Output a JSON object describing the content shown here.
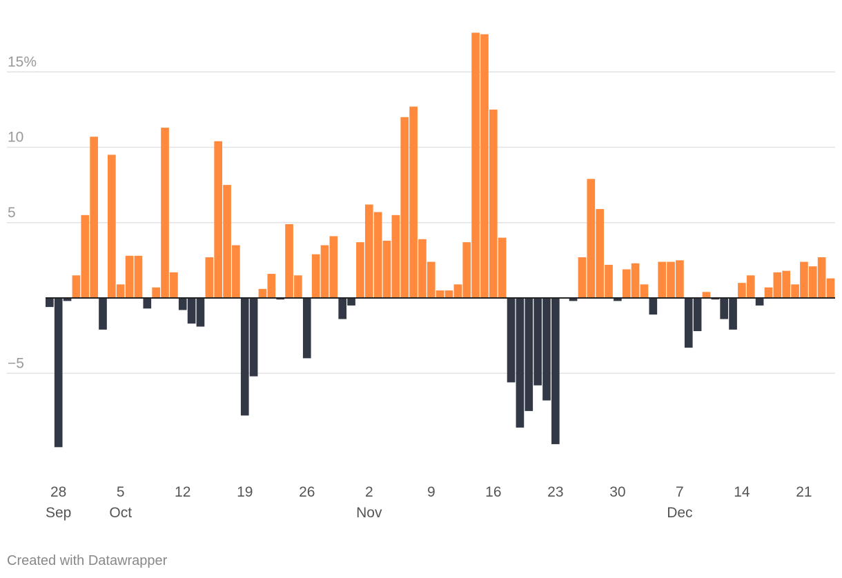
{
  "chart_data": {
    "type": "bar",
    "title": "",
    "xlabel": "",
    "ylabel": "",
    "ylim": [
      -11,
      19
    ],
    "y_ticks": [
      {
        "value": 15,
        "label": "15%"
      },
      {
        "value": 10,
        "label": "10"
      },
      {
        "value": 5,
        "label": "5"
      },
      {
        "value": -5,
        "label": "−5"
      }
    ],
    "x_ticks": [
      {
        "index": 1,
        "day": "28",
        "month": "Sep"
      },
      {
        "index": 8,
        "day": "5",
        "month": "Oct"
      },
      {
        "index": 15,
        "day": "12",
        "month": ""
      },
      {
        "index": 22,
        "day": "19",
        "month": ""
      },
      {
        "index": 29,
        "day": "26",
        "month": ""
      },
      {
        "index": 36,
        "day": "2",
        "month": "Nov"
      },
      {
        "index": 43,
        "day": "9",
        "month": ""
      },
      {
        "index": 50,
        "day": "16",
        "month": ""
      },
      {
        "index": 57,
        "day": "23",
        "month": ""
      },
      {
        "index": 64,
        "day": "30",
        "month": ""
      },
      {
        "index": 71,
        "day": "7",
        "month": "Dec"
      },
      {
        "index": 78,
        "day": "14",
        "month": ""
      },
      {
        "index": 85,
        "day": "21",
        "month": ""
      }
    ],
    "colors": {
      "positive": "#ff8a3d",
      "negative": "#323846",
      "gridline": "#e2e2e2",
      "baseline": "#222222"
    },
    "values": [
      -0.6,
      -9.9,
      -0.2,
      1.5,
      5.5,
      10.7,
      -2.1,
      9.5,
      0.9,
      2.8,
      2.8,
      -0.7,
      0.7,
      11.3,
      1.7,
      -0.8,
      -1.7,
      -1.9,
      2.7,
      10.4,
      7.5,
      3.5,
      -7.8,
      -5.2,
      0.6,
      1.6,
      -0.1,
      4.9,
      1.5,
      -4.0,
      2.9,
      3.5,
      4.1,
      -1.4,
      -0.5,
      3.7,
      6.2,
      5.7,
      3.8,
      5.5,
      12.0,
      12.7,
      3.9,
      2.4,
      0.5,
      0.5,
      0.9,
      3.7,
      17.6,
      17.5,
      12.5,
      4.0,
      -5.6,
      -8.6,
      -7.5,
      -5.8,
      -6.8,
      -9.7,
      0.0,
      -0.2,
      2.7,
      7.9,
      5.9,
      2.2,
      -0.2,
      1.9,
      2.3,
      0.9,
      -1.1,
      2.4,
      2.4,
      2.5,
      -3.3,
      -2.2,
      0.4,
      -0.1,
      -1.4,
      -2.1,
      1.0,
      1.5,
      -0.5,
      0.7,
      1.7,
      1.8,
      0.9,
      2.4,
      2.1,
      2.7,
      1.3
    ]
  },
  "footer": {
    "credit": "Created with Datawrapper"
  }
}
